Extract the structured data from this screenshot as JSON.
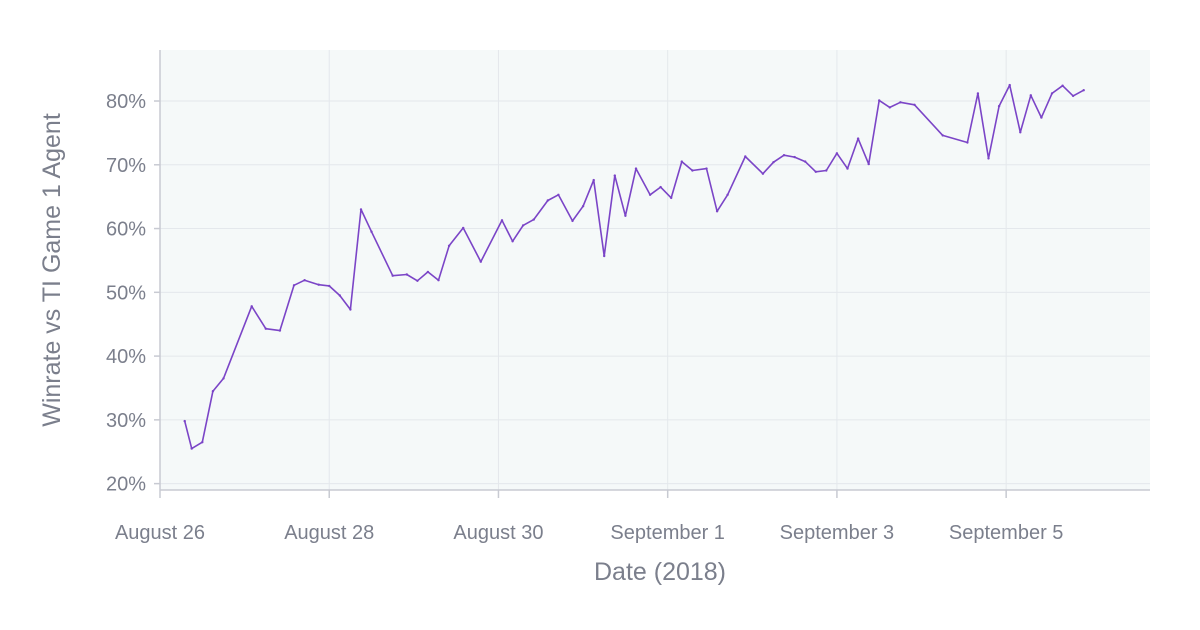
{
  "chart_data": {
    "type": "line",
    "title": "",
    "xlabel": "Date (2018)",
    "ylabel": "Winrate vs TI Game 1 Agent",
    "y_tick_labels": [
      "20%",
      "30%",
      "40%",
      "50%",
      "60%",
      "70%",
      "80%"
    ],
    "y_ticks": [
      20,
      30,
      40,
      50,
      60,
      70,
      80
    ],
    "ylim": [
      19,
      88
    ],
    "x_tick_labels": [
      "August 26",
      "August 28",
      "August 30",
      "September 1",
      "September 3",
      "September 5"
    ],
    "x_tick_dates": [
      "2018-08-26",
      "2018-08-28",
      "2018-08-30",
      "2018-09-01",
      "2018-09-03",
      "2018-09-05"
    ],
    "xlim": [
      "2018-08-26",
      "2018-09-06T16:48"
    ],
    "grid": true,
    "colors": {
      "line": "#7b45c7",
      "plot_background": "#f5f9f9",
      "grid": "#e4e8ec",
      "axis": "#c8cad2",
      "text": "#7b7f8c"
    },
    "series": [
      {
        "x": [
          "2018-08-26T07:00",
          "2018-08-26T09:00",
          "2018-08-26T12:00",
          "2018-08-26T15:00",
          "2018-08-26T18:00",
          "2018-08-27T02:00",
          "2018-08-27T06:00",
          "2018-08-27T10:00",
          "2018-08-27T14:00",
          "2018-08-27T17:00",
          "2018-08-27T21:00",
          "2018-08-28T00:00",
          "2018-08-28T03:00",
          "2018-08-28T06:00",
          "2018-08-28T09:00",
          "2018-08-28T12:00",
          "2018-08-28T18:00",
          "2018-08-28T22:00",
          "2018-08-29T01:00",
          "2018-08-29T04:00",
          "2018-08-29T07:00",
          "2018-08-29T10:00",
          "2018-08-29T14:00",
          "2018-08-29T19:00",
          "2018-08-30T01:00",
          "2018-08-30T04:00",
          "2018-08-30T07:00",
          "2018-08-30T10:00",
          "2018-08-30T14:00",
          "2018-08-30T17:00",
          "2018-08-30T21:00",
          "2018-08-31T00:00",
          "2018-08-31T03:00",
          "2018-08-31T06:00",
          "2018-08-31T09:00",
          "2018-08-31T12:00",
          "2018-08-31T15:00",
          "2018-08-31T19:00",
          "2018-08-31T22:00",
          "2018-09-01T01:00",
          "2018-09-01T04:00",
          "2018-09-01T07:00",
          "2018-09-01T11:00",
          "2018-09-01T14:00",
          "2018-09-01T17:00",
          "2018-09-01T22:00",
          "2018-09-02T03:00",
          "2018-09-02T06:00",
          "2018-09-02T09:00",
          "2018-09-02T12:00",
          "2018-09-02T15:00",
          "2018-09-02T18:00",
          "2018-09-02T21:00",
          "2018-09-03T00:00",
          "2018-09-03T03:00",
          "2018-09-03T06:00",
          "2018-09-03T09:00",
          "2018-09-03T12:00",
          "2018-09-03T15:00",
          "2018-09-03T18:00",
          "2018-09-03T22:00",
          "2018-09-04T06:00",
          "2018-09-04T13:00",
          "2018-09-04T16:00",
          "2018-09-04T19:00",
          "2018-09-04T22:00",
          "2018-09-05T01:00",
          "2018-09-05T04:00",
          "2018-09-05T07:00",
          "2018-09-05T10:00",
          "2018-09-05T13:00",
          "2018-09-05T16:00",
          "2018-09-05T19:00",
          "2018-09-05T22:00"
        ],
        "values": [
          29.8,
          25.5,
          26.5,
          34.5,
          36.5,
          47.8,
          44.3,
          44.0,
          51.1,
          51.9,
          51.2,
          51.0,
          49.5,
          47.3,
          63.0,
          59.5,
          52.6,
          52.8,
          51.8,
          53.2,
          51.9,
          57.3,
          60.1,
          54.8,
          61.3,
          58.0,
          60.5,
          61.4,
          64.4,
          65.3,
          61.2,
          63.5,
          67.6,
          55.7,
          68.3,
          62.0,
          69.4,
          65.3,
          66.5,
          64.8,
          70.5,
          69.1,
          69.4,
          62.7,
          65.3,
          71.3,
          68.6,
          70.4,
          71.5,
          71.2,
          70.5,
          68.9,
          69.1,
          71.8,
          69.4,
          74.1,
          70.1,
          80.1,
          79.0,
          79.8,
          79.4,
          74.6,
          73.5,
          81.2,
          71.0,
          79.2,
          82.5,
          75.1,
          80.9,
          77.4,
          81.2,
          82.4,
          80.8,
          81.7
        ]
      }
    ]
  }
}
